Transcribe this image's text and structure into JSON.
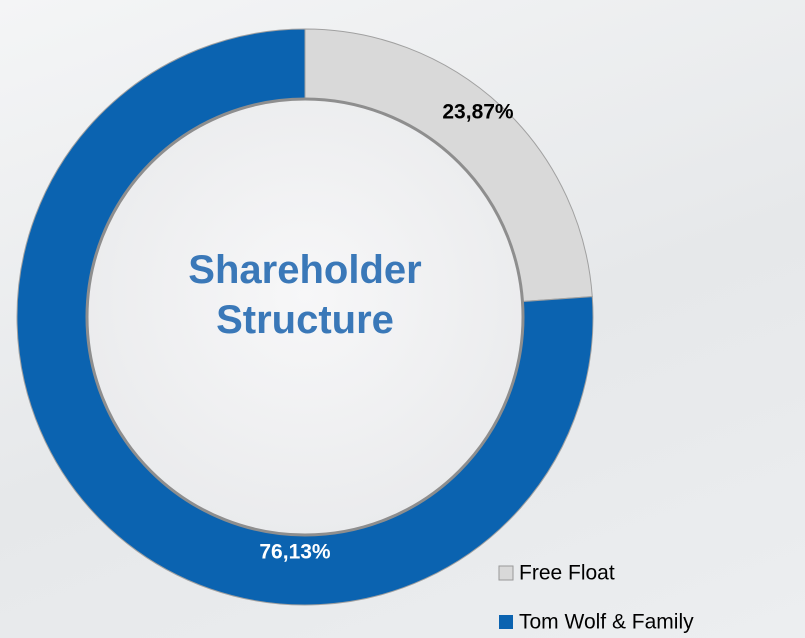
{
  "chart_data": {
    "type": "donut",
    "title": "Shareholder Structure",
    "categories": [
      "Free Float",
      "Tom Wolf & Family"
    ],
    "values": [
      23.87,
      76.13
    ],
    "value_labels": [
      "23,87%",
      "76,13%"
    ],
    "colors": [
      "#d9d9d9",
      "#0b63b0"
    ],
    "legend": "bottom-right"
  }
}
